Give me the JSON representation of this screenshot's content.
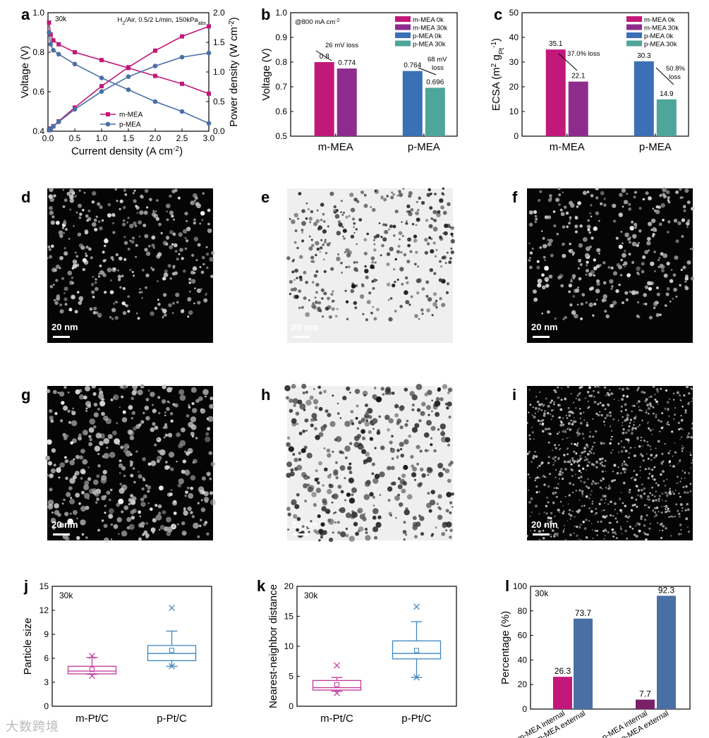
{
  "colors": {
    "magenta": "#c2187a",
    "purple": "#8e2c8e",
    "blue": "#3b6fb6",
    "teal": "#4ea59a",
    "steel": "#4a6fa5",
    "plum": "#7a1f6a",
    "boxMagenta": "#c0399b",
    "boxBlue": "#3e86bf"
  },
  "panels": {
    "a": {
      "letter": "a",
      "tag": "30k",
      "condition_main": "H",
      "condition_sub": "2",
      "condition_rest": "/Air, 0.5/2 L/min, 150kPa",
      "condition_sub2": "abs",
      "xlabel": "Current density (A cm",
      "xlabel_sup": "-2",
      "ylabel": "Voltage (V)",
      "y2label": "Power density (W cm",
      "y2label_sup": "-2",
      "legend": [
        "m-MEA",
        "p-MEA"
      ]
    },
    "b": {
      "letter": "b",
      "note": "@800 mA cm",
      "note_sup": "-2",
      "ylabel": "Voltage (V)",
      "loss1": "26 mV loss",
      "loss2a": "68 mV",
      "loss2b": "loss",
      "legend": [
        "m-MEA 0k",
        "m-MEA 30k",
        "p-MEA 0k",
        "p-MEA 30k"
      ]
    },
    "c": {
      "letter": "c",
      "ylabel": "ECSA (m",
      "ylabel_sup": "2",
      "ylabel_mid": " g",
      "ylabel_sub": "Pt",
      "ylabel_sup2": "-1",
      "loss1": "37.0% loss",
      "loss2a": "50.8%",
      "loss2b": "loss",
      "legend": [
        "m-MEA 0k",
        "m-MEA 30k",
        "p-MEA 0k",
        "p-MEA 30k"
      ]
    },
    "micro": [
      {
        "letter": "d",
        "scale": "20 nm"
      },
      {
        "letter": "e",
        "scale": "20 nm"
      },
      {
        "letter": "f",
        "scale": "20 nm"
      },
      {
        "letter": "g",
        "scale": "20 nm"
      },
      {
        "letter": "h",
        "scale": "20 nm"
      },
      {
        "letter": "i",
        "scale": "20 nm"
      }
    ],
    "j": {
      "letter": "j",
      "tag": "30k",
      "ylabel": "Particle size"
    },
    "k": {
      "letter": "k",
      "tag": "30k",
      "ylabel": "Nearest-neighbor distance"
    },
    "l": {
      "letter": "l",
      "tag": "30k",
      "ylabel": "Percentage (%)"
    }
  },
  "watermark": "大数跨境",
  "chart_data": [
    {
      "id": "a",
      "type": "line",
      "xlim": [
        0,
        3.0
      ],
      "ylim": [
        0.4,
        1.0
      ],
      "y2lim": [
        0,
        2.0
      ],
      "xticks": [
        "0.0",
        "0.5",
        "1.0",
        "1.5",
        "2.0",
        "2.5",
        "3.0"
      ],
      "yticks": [
        "0.4",
        "0.6",
        "0.8",
        "1.0"
      ],
      "y2ticks": [
        "0.0",
        "0.5",
        "1.0",
        "1.5",
        "2.0"
      ],
      "series": [
        {
          "name": "m-MEA",
          "axis": "left",
          "x": [
            0.02,
            0.05,
            0.1,
            0.2,
            0.5,
            1.0,
            1.5,
            2.0,
            2.5,
            3.0
          ],
          "y": [
            0.95,
            0.89,
            0.86,
            0.84,
            0.8,
            0.76,
            0.72,
            0.68,
            0.64,
            0.59
          ]
        },
        {
          "name": "p-MEA",
          "axis": "left",
          "x": [
            0.02,
            0.05,
            0.1,
            0.2,
            0.5,
            1.0,
            1.5,
            2.0,
            2.5,
            3.0
          ],
          "y": [
            0.9,
            0.84,
            0.81,
            0.79,
            0.74,
            0.67,
            0.61,
            0.55,
            0.5,
            0.44
          ]
        },
        {
          "name": "m-MEA power",
          "axis": "right",
          "x": [
            0.02,
            0.05,
            0.1,
            0.2,
            0.5,
            1.0,
            1.5,
            2.0,
            2.5,
            3.0
          ],
          "y": [
            0.02,
            0.045,
            0.086,
            0.168,
            0.4,
            0.76,
            1.08,
            1.36,
            1.6,
            1.77
          ]
        },
        {
          "name": "p-MEA power",
          "axis": "right",
          "x": [
            0.02,
            0.05,
            0.1,
            0.2,
            0.5,
            1.0,
            1.5,
            2.0,
            2.5,
            3.0
          ],
          "y": [
            0.018,
            0.042,
            0.081,
            0.158,
            0.37,
            0.67,
            0.92,
            1.1,
            1.25,
            1.32
          ]
        }
      ]
    },
    {
      "id": "b",
      "type": "bar",
      "categories": [
        "m-MEA",
        "p-MEA"
      ],
      "ylim": [
        0.5,
        1.0
      ],
      "yticks": [
        "0.5",
        "0.6",
        "0.7",
        "0.8",
        "0.9",
        "1.0"
      ],
      "bars": [
        {
          "group": "m-MEA",
          "name": "m-MEA 0k",
          "value": 0.8,
          "label": "0.8"
        },
        {
          "group": "m-MEA",
          "name": "m-MEA 30k",
          "value": 0.774,
          "label": "0.774"
        },
        {
          "group": "p-MEA",
          "name": "p-MEA 0k",
          "value": 0.764,
          "label": "0.764"
        },
        {
          "group": "p-MEA",
          "name": "p-MEA 30k",
          "value": 0.696,
          "label": "0.696"
        }
      ]
    },
    {
      "id": "c",
      "type": "bar",
      "categories": [
        "m-MEA",
        "p-MEA"
      ],
      "ylim": [
        0,
        50
      ],
      "yticks": [
        "0",
        "10",
        "20",
        "30",
        "40",
        "50"
      ],
      "bars": [
        {
          "group": "m-MEA",
          "name": "m-MEA 0k",
          "value": 35.1,
          "label": "35.1"
        },
        {
          "group": "m-MEA",
          "name": "m-MEA 30k",
          "value": 22.1,
          "label": "22.1"
        },
        {
          "group": "p-MEA",
          "name": "p-MEA 0k",
          "value": 30.3,
          "label": "30.3"
        },
        {
          "group": "p-MEA",
          "name": "p-MEA 30k",
          "value": 14.9,
          "label": "14.9"
        }
      ]
    },
    {
      "id": "j",
      "type": "box",
      "categories": [
        "m-Pt/C",
        "p-Pt/C"
      ],
      "ylim": [
        0,
        15
      ],
      "yticks": [
        "0",
        "3",
        "6",
        "9",
        "12",
        "15"
      ],
      "boxes": [
        {
          "name": "m-Pt/C",
          "min": 4.0,
          "q1": 4.05,
          "median": 4.4,
          "q3": 5.0,
          "max": 6.1,
          "mean": 4.6,
          "outliers": [
            3.8,
            6.3
          ]
        },
        {
          "name": "p-Pt/C",
          "min": 5.0,
          "q1": 5.7,
          "median": 6.6,
          "q3": 7.6,
          "max": 9.4,
          "mean": 7.0,
          "outliers": [
            5.0,
            12.3
          ]
        }
      ]
    },
    {
      "id": "k",
      "type": "box",
      "categories": [
        "m-Pt/C",
        "p-Pt/C"
      ],
      "ylim": [
        0,
        20
      ],
      "yticks": [
        "0",
        "5",
        "10",
        "15",
        "20"
      ],
      "boxes": [
        {
          "name": "m-Pt/C",
          "min": 2.5,
          "q1": 2.7,
          "median": 3.1,
          "q3": 4.3,
          "max": 4.8,
          "mean": 3.6,
          "outliers": [
            2.2,
            6.8
          ]
        },
        {
          "name": "p-Pt/C",
          "min": 4.8,
          "q1": 7.9,
          "median": 8.8,
          "q3": 10.9,
          "max": 14.1,
          "mean": 9.3,
          "outliers": [
            4.8,
            16.6
          ]
        }
      ]
    },
    {
      "id": "l",
      "type": "bar",
      "ylim": [
        0,
        100
      ],
      "yticks": [
        "0",
        "20",
        "40",
        "60",
        "80",
        "100"
      ],
      "categories": [
        "m-MEA internal",
        "m-MEA external",
        "p-MEA internal",
        "p-MEA external"
      ],
      "bars": [
        {
          "name": "m-MEA internal",
          "value": 26.3,
          "label": "26.3"
        },
        {
          "name": "m-MEA external",
          "value": 73.7,
          "label": "73.7"
        },
        {
          "name": "p-MEA internal",
          "value": 7.7,
          "label": "7.7"
        },
        {
          "name": "p-MEA external",
          "value": 92.3,
          "label": "92.3"
        }
      ]
    }
  ]
}
